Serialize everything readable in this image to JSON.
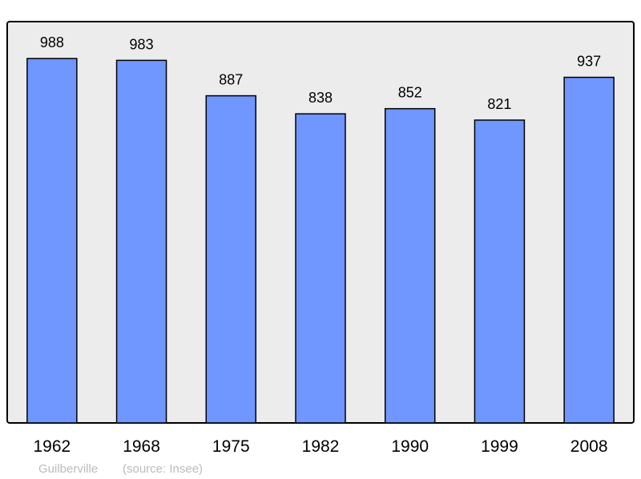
{
  "chart_data": {
    "type": "bar",
    "categories": [
      "1962",
      "1968",
      "1975",
      "1982",
      "1990",
      "1999",
      "2008"
    ],
    "values": [
      988,
      983,
      887,
      838,
      852,
      821,
      937
    ],
    "title": "",
    "xlabel": "",
    "ylabel": "",
    "ylim": [
      0,
      1088
    ],
    "grid": false,
    "bar_color": "#7096ff",
    "plot_background": "#ececec",
    "data_labels": true
  },
  "footer": {
    "place": "Guilberville",
    "source": "(source: Insee)"
  }
}
